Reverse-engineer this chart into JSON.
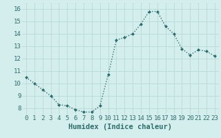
{
  "x": [
    0,
    1,
    2,
    3,
    4,
    5,
    6,
    7,
    8,
    9,
    10,
    11,
    12,
    13,
    14,
    15,
    16,
    17,
    18,
    19,
    20,
    21,
    22,
    23
  ],
  "y": [
    10.5,
    10.0,
    9.5,
    9.0,
    8.3,
    8.2,
    7.9,
    7.7,
    7.7,
    8.2,
    10.7,
    13.5,
    13.7,
    14.0,
    14.8,
    15.8,
    15.8,
    14.6,
    14.0,
    12.8,
    12.3,
    12.7,
    12.6,
    12.2
  ],
  "line_color": "#2e6b6b",
  "marker": "D",
  "marker_size": 2.0,
  "bg_color": "#d4eeee",
  "grid_color": "#b8d8d8",
  "xlabel": "Humidex (Indice chaleur)",
  "ylim": [
    7.5,
    16.5
  ],
  "xlim": [
    -0.5,
    23.5
  ],
  "yticks": [
    8,
    9,
    10,
    11,
    12,
    13,
    14,
    15,
    16
  ],
  "xticks": [
    0,
    1,
    2,
    3,
    4,
    5,
    6,
    7,
    8,
    9,
    10,
    11,
    12,
    13,
    14,
    15,
    16,
    17,
    18,
    19,
    20,
    21,
    22,
    23
  ],
  "tick_label_fontsize": 6.5,
  "xlabel_fontsize": 7.5,
  "line_width": 1.0
}
